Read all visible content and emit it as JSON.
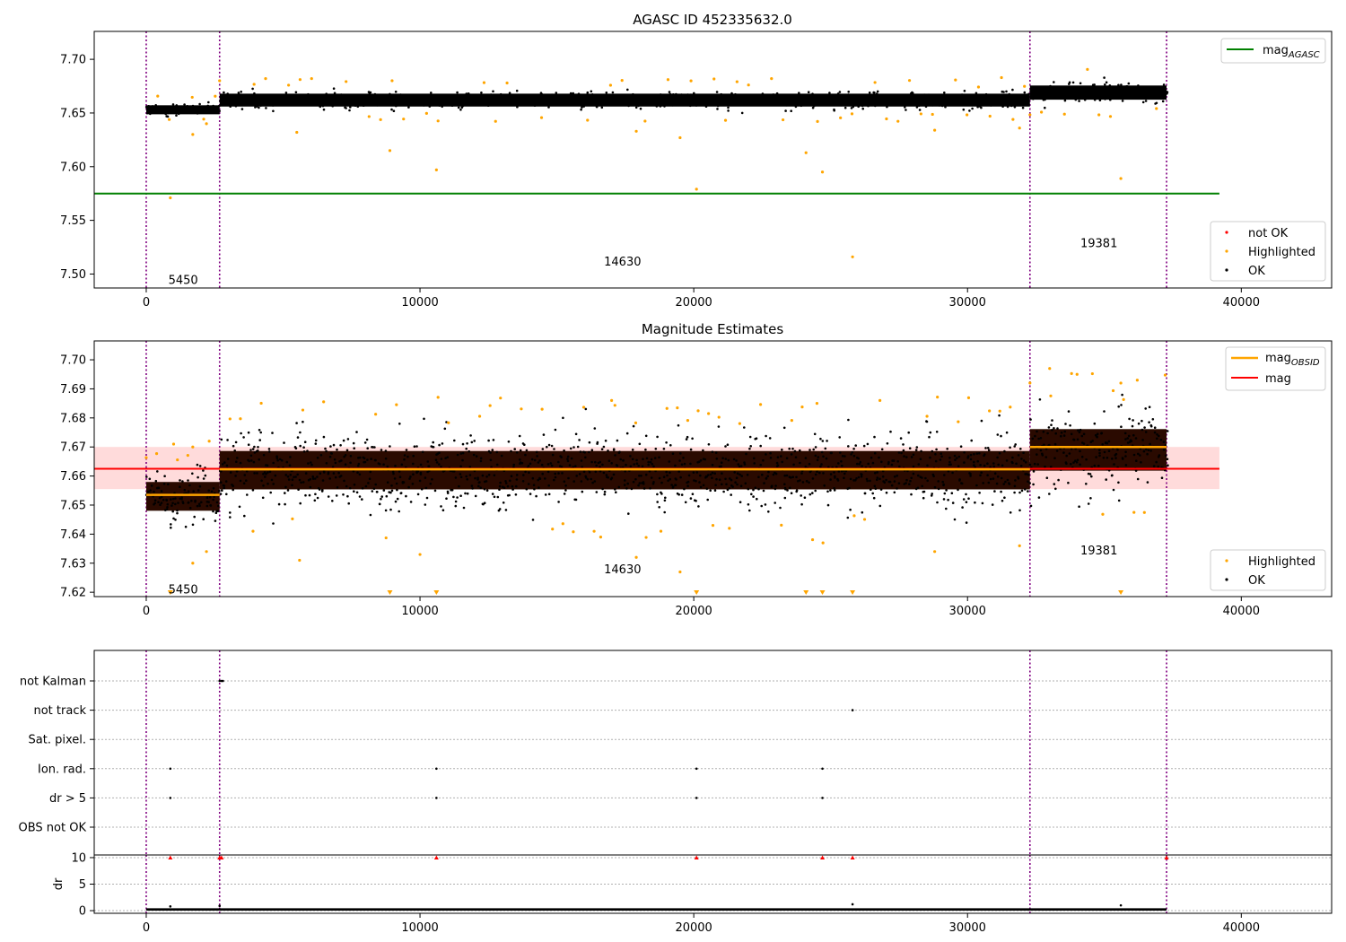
{
  "figure": {
    "title_top": "AGASC ID 452335632.0",
    "title_mid": "Magnitude Estimates"
  },
  "legend": {
    "mag_agasc": "mag",
    "mag_agasc_sub": "AGASC",
    "mag_obsid": "mag",
    "mag_obsid_sub": "OBSID",
    "mag": "mag",
    "not_ok": "not OK",
    "highlighted": "Highlighted",
    "ok": "OK"
  },
  "colors": {
    "ok": "#000000",
    "highlighted": "#ffa500",
    "not_ok": "#ff0000",
    "agasc_line": "#008000",
    "mag_line": "#ff0000",
    "obsid_line": "#ffa500",
    "band": "#ffcccc",
    "obs_box": "#2a0a00",
    "vline": "#800080"
  },
  "chart_data": [
    {
      "type": "scatter",
      "title": "AGASC ID 452335632.0",
      "xlim": [
        -1900,
        43300
      ],
      "ylim": [
        7.487,
        7.726
      ],
      "xticks": [
        0,
        10000,
        20000,
        30000,
        40000
      ],
      "yticks": [
        7.5,
        7.55,
        7.6,
        7.65,
        7.7
      ],
      "obs_boundaries": [
        0,
        2680,
        32280,
        37270
      ],
      "obs_labels": [
        {
          "text": "5450",
          "x": 1350,
          "y": 7.495
        },
        {
          "text": "14630",
          "x": 17400,
          "y": 7.512
        },
        {
          "text": "19381",
          "x": 34800,
          "y": 7.529
        }
      ],
      "mag_agasc": {
        "value": 7.575,
        "x_range": [
          -1900,
          39200
        ]
      },
      "ok_bands": [
        {
          "x": [
            0,
            2680
          ],
          "center": 7.653,
          "halfwidth": 0.007
        },
        {
          "x": [
            2680,
            32280
          ],
          "center": 7.662,
          "halfwidth": 0.01
        },
        {
          "x": [
            32280,
            37270
          ],
          "center": 7.669,
          "halfwidth": 0.011
        }
      ],
      "highlighted_outliers": [
        [
          880,
          7.571
        ],
        [
          1700,
          7.63
        ],
        [
          2200,
          7.64
        ],
        [
          8900,
          7.615
        ],
        [
          10600,
          7.597
        ],
        [
          24100,
          7.613
        ],
        [
          24700,
          7.595
        ],
        [
          20100,
          7.579
        ],
        [
          25800,
          7.516
        ],
        [
          35600,
          7.589
        ],
        [
          28800,
          7.634
        ],
        [
          17900,
          7.633
        ],
        [
          19500,
          7.627
        ],
        [
          31900,
          7.636
        ],
        [
          5500,
          7.632
        ]
      ],
      "legend": [
        "mag_AGASC",
        "not OK",
        "Highlighted",
        "OK"
      ]
    },
    {
      "type": "scatter",
      "title": "Magnitude Estimates",
      "xlim": [
        -1900,
        43300
      ],
      "ylim": [
        7.6185,
        7.7065
      ],
      "xticks": [
        0,
        10000,
        20000,
        30000,
        40000
      ],
      "yticks": [
        7.62,
        7.63,
        7.64,
        7.65,
        7.66,
        7.67,
        7.68,
        7.69,
        7.7
      ],
      "obs_boundaries": [
        0,
        2680,
        32280,
        37270
      ],
      "obs_labels": [
        {
          "text": "5450",
          "x": 1350,
          "y": 7.6212
        },
        {
          "text": "14630",
          "x": 17400,
          "y": 7.628
        },
        {
          "text": "19381",
          "x": 34800,
          "y": 7.6345
        }
      ],
      "mag": {
        "value": 7.6625,
        "band": [
          7.6555,
          7.67
        ],
        "x_range": [
          -1900,
          39200
        ]
      },
      "mag_obsid": [
        {
          "x": [
            0,
            2680
          ],
          "value": 7.6535
        },
        {
          "x": [
            2680,
            32280
          ],
          "value": 7.6623
        },
        {
          "x": [
            32280,
            37270
          ],
          "value": 7.67
        }
      ],
      "ok_bands": [
        {
          "x": [
            0,
            2680
          ],
          "center": 7.653,
          "halfwidth": 0.009
        },
        {
          "x": [
            2680,
            32280
          ],
          "center": 7.662,
          "halfwidth": 0.012
        },
        {
          "x": [
            32280,
            37270
          ],
          "center": 7.669,
          "halfwidth": 0.013
        }
      ],
      "highlighted_outliers": [
        [
          1700,
          7.63
        ],
        [
          2200,
          7.634
        ],
        [
          3900,
          7.641
        ],
        [
          5600,
          7.631
        ],
        [
          10000,
          7.633
        ],
        [
          16600,
          7.639
        ],
        [
          17900,
          7.632
        ],
        [
          19500,
          7.627
        ],
        [
          18800,
          7.641
        ],
        [
          28800,
          7.634
        ],
        [
          31900,
          7.636
        ],
        [
          20700,
          7.643
        ],
        [
          1000,
          7.671
        ],
        [
          1700,
          7.67
        ],
        [
          2300,
          7.672
        ],
        [
          33000,
          7.697
        ],
        [
          34000,
          7.695
        ],
        [
          35600,
          7.692
        ],
        [
          36200,
          7.693
        ],
        [
          17000,
          7.686
        ],
        [
          24500,
          7.685
        ],
        [
          26800,
          7.686
        ]
      ],
      "lower_limit_markers": [
        880,
        8900,
        10600,
        20100,
        24100,
        24700,
        25800,
        35600
      ],
      "legend": [
        "mag_OBSID",
        "mag",
        "Highlighted",
        "OK"
      ]
    },
    {
      "type": "scatter",
      "xlim": [
        -1900,
        43300
      ],
      "flag_labels": [
        "not Kalman",
        "not track",
        "Sat. pixel.",
        "Ion. rad.",
        "dr > 5",
        "OBS not OK"
      ],
      "flag_points": {
        "not Kalman": [
          2680,
          2750,
          2800
        ],
        "not track": [
          25800
        ],
        "Sat. pixel.": [],
        "Ion. rad.": [
          880,
          10600,
          20100,
          24700
        ],
        "dr > 5": [
          880,
          10600,
          20100,
          24700
        ],
        "OBS not OK": []
      },
      "obs_boundaries": [
        0,
        2680,
        32280,
        37270
      ]
    },
    {
      "type": "scatter",
      "ylabel": "dr",
      "xlim": [
        -1900,
        43300
      ],
      "ylim": [
        -0.5,
        10.5
      ],
      "xticks": [
        0,
        10000,
        20000,
        30000,
        40000
      ],
      "yticks": [
        0,
        5,
        10
      ],
      "baseline": 0.2,
      "clipped_markers": [
        880,
        2680,
        2750,
        10600,
        20100,
        24700,
        25800,
        37270
      ],
      "small_outliers": [
        [
          880,
          0.8
        ],
        [
          25800,
          1.2
        ],
        [
          35600,
          1.0
        ],
        [
          2680,
          0.9
        ]
      ],
      "obs_boundaries": [
        0,
        2680,
        32280,
        37270
      ]
    }
  ]
}
